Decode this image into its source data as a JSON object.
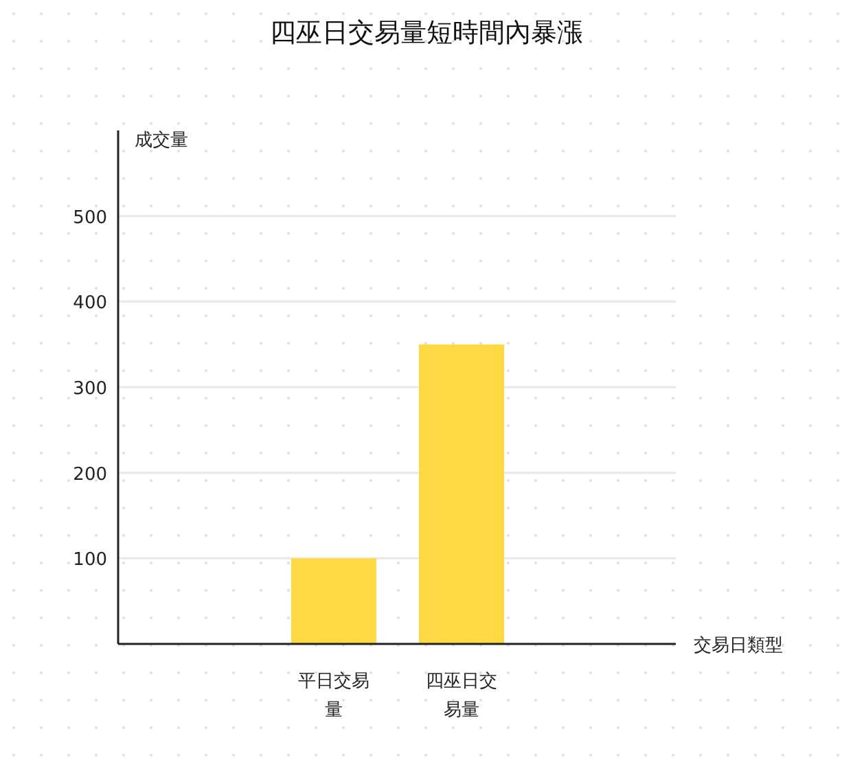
{
  "chart_data": {
    "type": "bar",
    "title": "四巫日交易量短時間內暴漲",
    "xlabel": "交易日類型",
    "ylabel": "成交量",
    "categories": [
      "平日交易量",
      "四巫日交易量"
    ],
    "values": [
      100,
      350
    ],
    "color": "#ffda44",
    "ylim": [
      0,
      600
    ],
    "yticks": [
      100,
      200,
      300,
      400,
      500
    ],
    "grid": "y"
  }
}
